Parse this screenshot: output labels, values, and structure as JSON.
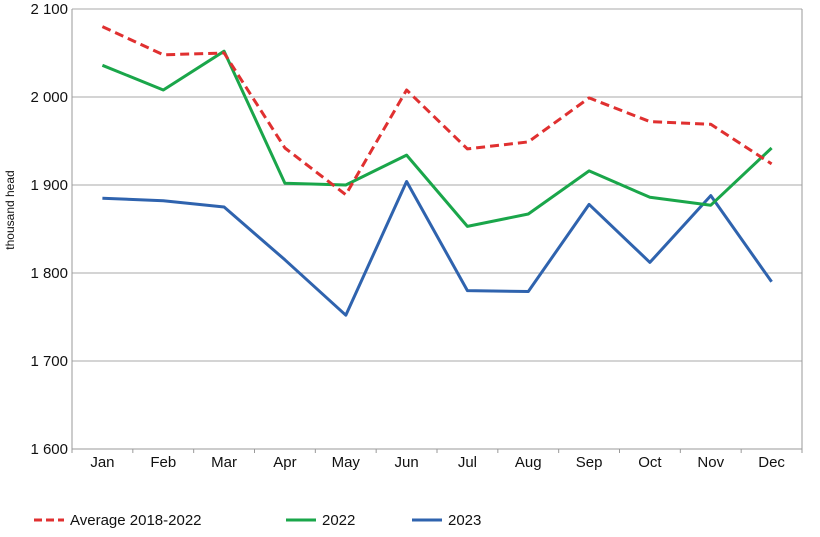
{
  "chart_data": {
    "type": "line",
    "categories": [
      "Jan",
      "Feb",
      "Mar",
      "Apr",
      "May",
      "Jun",
      "Jul",
      "Aug",
      "Sep",
      "Oct",
      "Nov",
      "Dec"
    ],
    "ylabel": "thousand head",
    "ylim": [
      1600,
      2100
    ],
    "yticks": [
      1600,
      1700,
      1800,
      1900,
      2000,
      2100
    ],
    "ytick_labels": [
      "1 600",
      "1 700",
      "1 800",
      "1 900",
      "2 000",
      "2 100"
    ],
    "grid": "horizontal",
    "legend_position": "bottom",
    "series": [
      {
        "name": "Average 2018-2022",
        "color": "#e03030",
        "style": "dashed",
        "values": [
          2080,
          2048,
          2050,
          1942,
          1889,
          2008,
          1941,
          1949,
          1999,
          1972,
          1969,
          1924
        ]
      },
      {
        "name": "2022",
        "color": "#1aa64a",
        "style": "solid",
        "values": [
          2036,
          2008,
          2052,
          1902,
          1900,
          1934,
          1853,
          1867,
          1916,
          1886,
          1877,
          1942
        ]
      },
      {
        "name": "2023",
        "color": "#2f63ae",
        "style": "solid",
        "values": [
          1885,
          1882,
          1875,
          1815,
          1752,
          1904,
          1780,
          1779,
          1878,
          1812,
          1888,
          1790
        ]
      }
    ]
  }
}
